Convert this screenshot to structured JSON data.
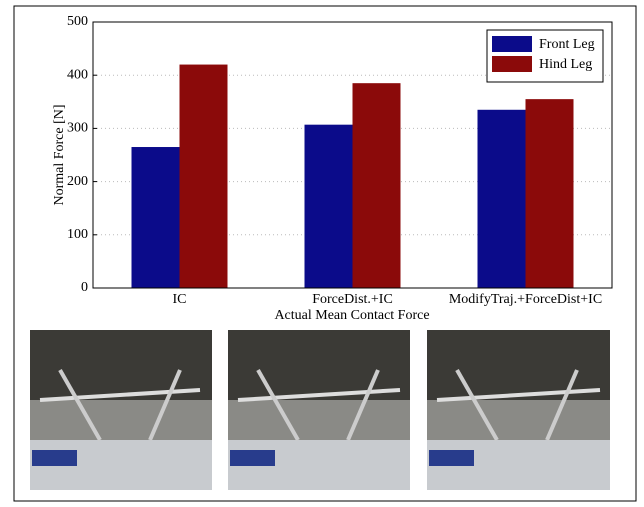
{
  "chart_data": {
    "type": "bar",
    "x_label": "Actual Mean Contact Force",
    "y_label": "Normal Force [N]",
    "categories": [
      "IC",
      "ForceDist.+IC",
      "ModifyTraj.+ForceDist+IC"
    ],
    "series": [
      {
        "name": "Front Leg",
        "color": "#0b0b8a",
        "values": [
          265,
          307,
          335
        ]
      },
      {
        "name": "Hind Leg",
        "color": "#8b0a0a",
        "values": [
          420,
          385,
          355
        ]
      }
    ],
    "ylim": [
      0,
      500
    ],
    "yticks": [
      0,
      100,
      200,
      300,
      400,
      500
    ],
    "grid": true,
    "legend": "top-right"
  }
}
